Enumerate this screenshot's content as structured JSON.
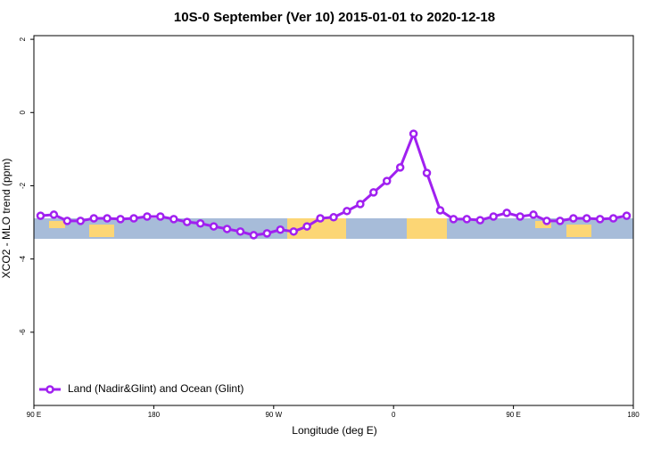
{
  "chart_data": {
    "type": "line",
    "title": "10S-0 September (Ver 10)   2015-01-01 to 2020-12-18",
    "x_label": "Longitude (deg E)",
    "y_label": "XCO2 - MLO trend (ppm)",
    "x": [
      95,
      105,
      115,
      125,
      135,
      145,
      155,
      165,
      175,
      185,
      195,
      205,
      215,
      225,
      235,
      245,
      255,
      265,
      275,
      285,
      295,
      305,
      315,
      325,
      335,
      345,
      355,
      365,
      375,
      385,
      395,
      405,
      415,
      425,
      435,
      445,
      455,
      465,
      475,
      485,
      495,
      505,
      515,
      525,
      535
    ],
    "series": [
      {
        "name": "Land (Nadir&Glint) and Ocean (Glint)",
        "color": "#a020f0",
        "values": [
          -2.82,
          -2.79,
          -2.96,
          -2.96,
          -2.89,
          -2.89,
          -2.91,
          -2.89,
          -2.84,
          -2.84,
          -2.91,
          -2.99,
          -3.03,
          -3.11,
          -3.18,
          -3.25,
          -3.35,
          -3.3,
          -3.2,
          -3.25,
          -3.11,
          -2.89,
          -2.86,
          -2.69,
          -2.5,
          -2.18,
          -1.87,
          -1.5,
          -0.58,
          -1.65,
          -2.67,
          -2.91,
          -2.91,
          -2.94,
          -2.84,
          -2.74,
          -2.84,
          -2.79,
          -2.96,
          -2.96,
          -2.89,
          -2.89,
          -2.91,
          -2.89,
          -2.82
        ]
      }
    ],
    "xlim": [
      90,
      540
    ],
    "xticks": [
      {
        "value": 90,
        "label": "90 E"
      },
      {
        "value": 180,
        "label": "180"
      },
      {
        "value": 270,
        "label": "90 W"
      },
      {
        "value": 360,
        "label": "0"
      },
      {
        "value": 450,
        "label": "90 E"
      },
      {
        "value": 540,
        "label": "180"
      }
    ],
    "ylim": [
      -8,
      2.1
    ],
    "yticks": [
      2,
      0,
      -2,
      -4,
      -6
    ],
    "legend": "bottom-left"
  }
}
